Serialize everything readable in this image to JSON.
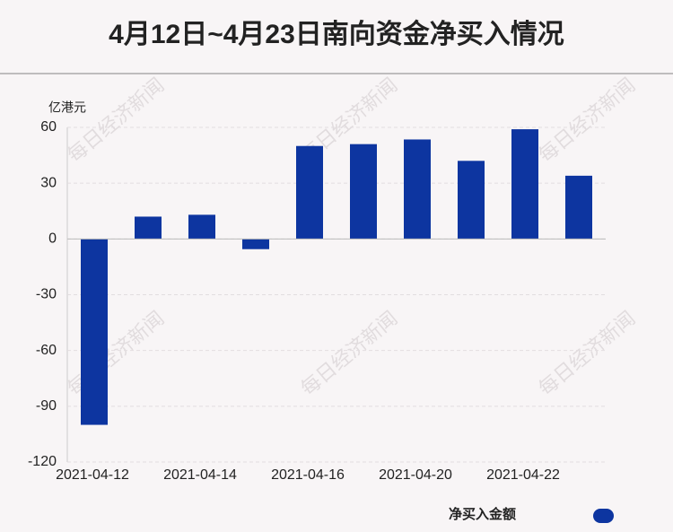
{
  "chart_data": {
    "type": "bar",
    "title": "4月12日~4月23日南向资金净买入情况",
    "y_axis_label": "亿港元",
    "watermark": "每日经济新闻",
    "categories": [
      "2021-04-12",
      null,
      "2021-04-14",
      null,
      "2021-04-16",
      null,
      "2021-04-20",
      null,
      "2021-04-22",
      null
    ],
    "series": [
      {
        "name": "净买入金额",
        "color": "#0d35a0",
        "values": [
          -100,
          12,
          13,
          -5.5,
          50,
          51,
          53.5,
          42,
          59,
          34
        ]
      }
    ],
    "ylim": [
      -120,
      60
    ],
    "yticks": [
      -120,
      -90,
      -60,
      -30,
      0,
      30,
      60
    ],
    "grid": true,
    "legend": "bottom-right"
  }
}
